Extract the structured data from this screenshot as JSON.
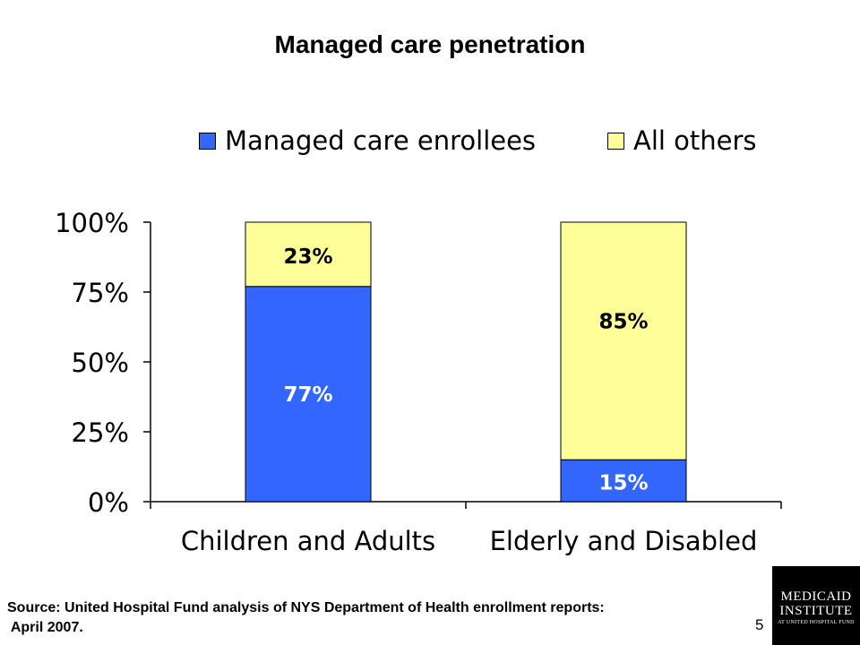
{
  "chart_data": {
    "type": "bar",
    "stacked": true,
    "title": "Managed care penetration",
    "categories": [
      "Children and Adults",
      "Elderly and Disabled"
    ],
    "series": [
      {
        "name": "Managed care enrollees",
        "values": [
          77,
          15
        ],
        "labels": [
          "77%",
          "15%"
        ],
        "color": "#3366ff",
        "label_color": "#ffffff"
      },
      {
        "name": "All others",
        "values": [
          23,
          85
        ],
        "labels": [
          "23%",
          "85%"
        ],
        "color": "#ffff99",
        "label_color": "#000000"
      }
    ],
    "ylim": [
      0,
      100
    ],
    "yticks": [
      0,
      25,
      50,
      75,
      100
    ],
    "ytick_labels": [
      "0%",
      "25%",
      "50%",
      "75%",
      "100%"
    ],
    "legend": "top",
    "grid": false
  },
  "source": "Source: United Hospital Fund analysis of NYS Department of Health enrollment reports:\n April 2007.",
  "page_number": "5",
  "logo": {
    "line1": "MEDICAID",
    "line2": "INSTITUTE",
    "line3": "AT UNITED HOSPITAL FUND"
  }
}
